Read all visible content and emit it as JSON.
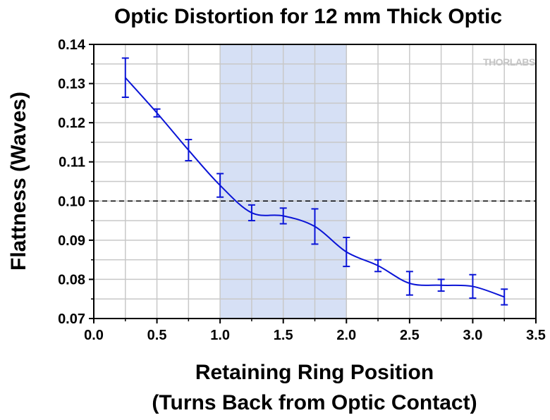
{
  "chart_data": {
    "type": "line",
    "title": "Optic Distortion for 12 mm Thick Optic",
    "xlabel_lines": [
      "Retaining Ring Position",
      "(Turns Back from Optic Contact)"
    ],
    "ylabel": "Flattness (Waves)",
    "watermark": "THORLABS",
    "xlim": [
      0.0,
      3.5
    ],
    "ylim": [
      0.07,
      0.14
    ],
    "x_ticks": [
      0.0,
      0.5,
      1.0,
      1.5,
      2.0,
      2.5,
      3.0,
      3.5
    ],
    "x_tick_labels": [
      "0.0",
      "0.5",
      "1.0",
      "1.5",
      "2.0",
      "2.5",
      "3.0",
      "3.5"
    ],
    "y_ticks": [
      0.07,
      0.08,
      0.09,
      0.1,
      0.11,
      0.12,
      0.13,
      0.14
    ],
    "y_tick_labels": [
      "0.07",
      "0.08",
      "0.09",
      "0.10",
      "0.11",
      "0.12",
      "0.13",
      "0.14"
    ],
    "grid": true,
    "shaded_region": {
      "x_start": 1.0,
      "x_end": 2.0,
      "color": "#d6e0f5"
    },
    "reference_line": {
      "y": 0.1,
      "style": "dashed",
      "color": "#000000"
    },
    "series": [
      {
        "color": "#0a14d6",
        "x": [
          0.25,
          0.5,
          0.75,
          1.0,
          1.25,
          1.5,
          1.75,
          2.0,
          2.25,
          2.5,
          2.75,
          3.0,
          3.25
        ],
        "y": [
          0.1315,
          0.1225,
          0.113,
          0.104,
          0.097,
          0.0962,
          0.0935,
          0.087,
          0.0835,
          0.079,
          0.0785,
          0.0782,
          0.0755
        ],
        "err": [
          0.005,
          0.001,
          0.0027,
          0.003,
          0.002,
          0.002,
          0.0045,
          0.0037,
          0.0015,
          0.003,
          0.0015,
          0.003,
          0.002
        ]
      }
    ]
  }
}
